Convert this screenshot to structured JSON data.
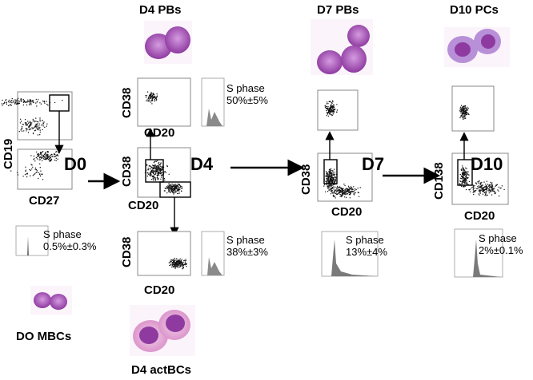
{
  "headers": {
    "d4_pbs": "D4 PBs",
    "d7_pbs": "D7 PBs",
    "d10_pcs": "D10 PCs",
    "d0_mbcs": "DO MBCs",
    "d4_actbcs": "D4 actBCs"
  },
  "days": {
    "d0": "D0",
    "d4": "D4",
    "d7": "D7",
    "d10": "D10"
  },
  "axes": {
    "cd19": "CD19",
    "cd27": "CD27",
    "cd38_d4_top": "CD38",
    "cd20_d4_top": "CD20",
    "cd38_d4_mid": "CD38",
    "cd20_d4_mid": "CD20",
    "cd38_d4_bot": "CD38",
    "cd20_d4_bot": "CD20",
    "cd38_d7": "CD38",
    "cd20_d7": "CD20",
    "cd138_d10": "CD138",
    "cd20_d10": "CD20"
  },
  "sphase": {
    "d0": {
      "label": "S phase",
      "value": "0.5%±0.3%"
    },
    "d4_pb": {
      "label": "S phase",
      "value": "50%±5%"
    },
    "d4_act": {
      "label": "S phase",
      "value": "38%±3%"
    },
    "d7": {
      "label": "S phase",
      "value": "13%±4%"
    },
    "d10": {
      "label": "S phase",
      "value": "2%±0.1%"
    }
  },
  "colors": {
    "cell_purple": "#8e3aa0",
    "cell_pink": "#e7b3d8",
    "histogram_gray": "#7a7a7a"
  }
}
